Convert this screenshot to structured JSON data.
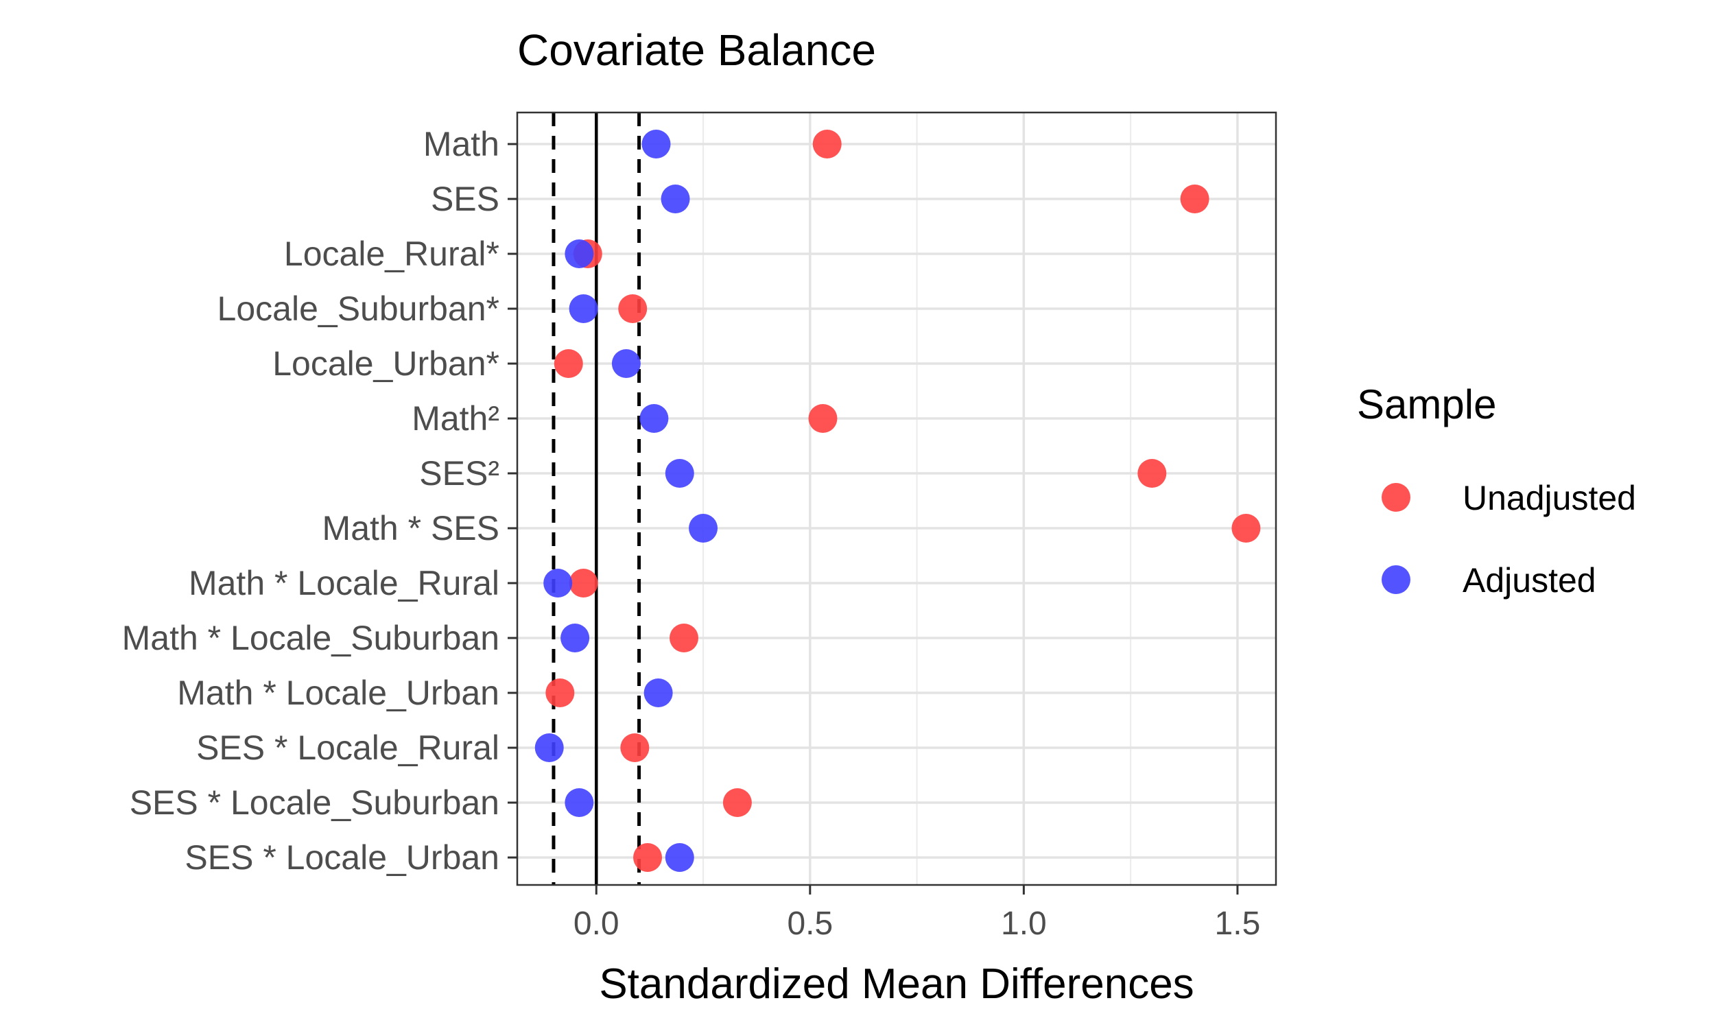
{
  "chart_data": {
    "type": "scatter",
    "title": "Covariate Balance",
    "xlabel": "Standardized Mean Differences",
    "ylabel": "",
    "xlim": [
      -0.185,
      1.59
    ],
    "x_ticks": [
      0.0,
      0.5,
      1.0,
      1.5
    ],
    "x_tick_labels": [
      "0.0",
      "0.5",
      "1.0",
      "1.5"
    ],
    "reference_lines": {
      "solid": 0.0,
      "dashed": [
        -0.1,
        0.1
      ]
    },
    "grid": true,
    "legend_placement": "right",
    "categories": [
      "Math",
      "SES",
      "Locale_Rural*",
      "Locale_Suburban*",
      "Locale_Urban*",
      "Math²",
      "SES²",
      "Math * SES",
      "Math * Locale_Rural",
      "Math * Locale_Suburban",
      "Math * Locale_Urban",
      "SES * Locale_Rural",
      "SES * Locale_Suburban",
      "SES * Locale_Urban"
    ],
    "legend_title": "Sample",
    "series": [
      {
        "name": "Unadjusted",
        "color": "#ff4040",
        "values": [
          0.54,
          1.4,
          -0.02,
          0.085,
          -0.065,
          0.53,
          1.3,
          1.52,
          -0.03,
          0.205,
          -0.085,
          0.09,
          0.33,
          0.12
        ]
      },
      {
        "name": "Adjusted",
        "color": "#4040ff",
        "values": [
          0.14,
          0.185,
          -0.04,
          -0.03,
          0.07,
          0.135,
          0.195,
          0.25,
          -0.09,
          -0.05,
          0.145,
          -0.11,
          -0.04,
          0.195
        ]
      }
    ]
  }
}
